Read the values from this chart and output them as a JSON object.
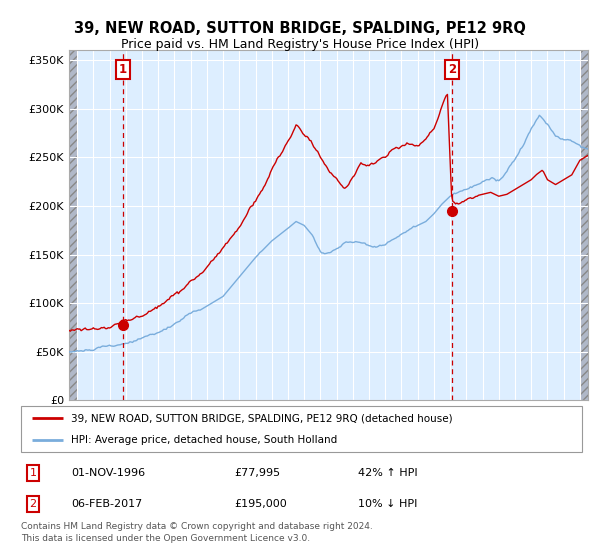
{
  "title": "39, NEW ROAD, SUTTON BRIDGE, SPALDING, PE12 9RQ",
  "subtitle": "Price paid vs. HM Land Registry's House Price Index (HPI)",
  "legend_line1": "39, NEW ROAD, SUTTON BRIDGE, SPALDING, PE12 9RQ (detached house)",
  "legend_line2": "HPI: Average price, detached house, South Holland",
  "footnote": "Contains HM Land Registry data © Crown copyright and database right 2024.\nThis data is licensed under the Open Government Licence v3.0.",
  "marker1_date": "01-NOV-1996",
  "marker1_price": 77995,
  "marker1_label": "42% ↑ HPI",
  "marker2_date": "06-FEB-2017",
  "marker2_price": 195000,
  "marker2_label": "10% ↓ HPI",
  "sale1_x": 1996.83,
  "sale1_y": 77995,
  "sale2_x": 2017.1,
  "sale2_y": 195000,
  "hpi_color": "#7aaddc",
  "price_color": "#cc0000",
  "marker_color": "#cc0000",
  "background_plot": "#ddeeff",
  "ylim": [
    0,
    360000
  ],
  "xlim_start": 1993.5,
  "xlim_end": 2025.5,
  "yticks": [
    0,
    50000,
    100000,
    150000,
    200000,
    250000,
    300000,
    350000
  ],
  "ytick_labels": [
    "£0",
    "£50K",
    "£100K",
    "£150K",
    "£200K",
    "£250K",
    "£300K",
    "£350K"
  ],
  "xticks": [
    1994,
    1995,
    1996,
    1997,
    1998,
    1999,
    2000,
    2001,
    2002,
    2003,
    2004,
    2005,
    2006,
    2007,
    2008,
    2009,
    2010,
    2011,
    2012,
    2013,
    2014,
    2015,
    2016,
    2017,
    2018,
    2019,
    2020,
    2021,
    2022,
    2023,
    2024,
    2025
  ],
  "hatch_color": "#b0b8c8",
  "grid_color": "#ffffff",
  "spine_color": "#aaaaaa"
}
